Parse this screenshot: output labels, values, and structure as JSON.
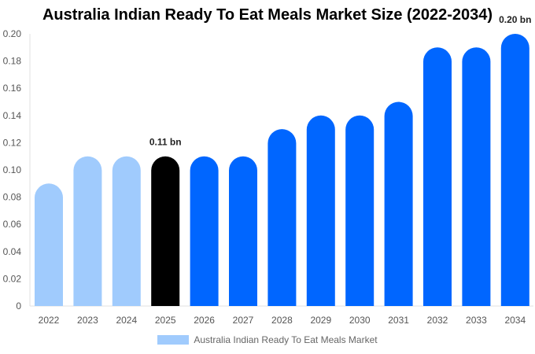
{
  "chart_data": {
    "type": "bar",
    "title": "Australia Indian Ready To Eat Meals Market Size (2022-2034)",
    "categories": [
      "2022",
      "2023",
      "2024",
      "2025",
      "2026",
      "2027",
      "2028",
      "2029",
      "2030",
      "2031",
      "2032",
      "2033",
      "2034"
    ],
    "series": [
      {
        "name": "Australia Indian Ready To Eat Meals Market",
        "values": [
          0.09,
          0.11,
          0.11,
          0.11,
          0.11,
          0.11,
          0.13,
          0.14,
          0.14,
          0.15,
          0.19,
          0.19,
          0.2
        ]
      }
    ],
    "ylim": [
      0,
      0.2
    ],
    "yticks": [
      "0",
      "0.02",
      "0.04",
      "0.06",
      "0.08",
      "0.10",
      "0.12",
      "0.14",
      "0.16",
      "0.18",
      "0.20"
    ],
    "data_labels": [
      {
        "category": "2025",
        "text": "0.11 bn"
      },
      {
        "category": "2034",
        "text": "0.20 bn"
      }
    ],
    "bar_colors": [
      "#a0cbfd",
      "#a0cbfd",
      "#a0cbfd",
      "#000000",
      "#0066ff",
      "#0066ff",
      "#0066ff",
      "#0066ff",
      "#0066ff",
      "#0066ff",
      "#0066ff",
      "#0066ff",
      "#0066ff"
    ],
    "legend_color": "#a0cbfd",
    "legend_position": "bottom",
    "grid": false
  }
}
